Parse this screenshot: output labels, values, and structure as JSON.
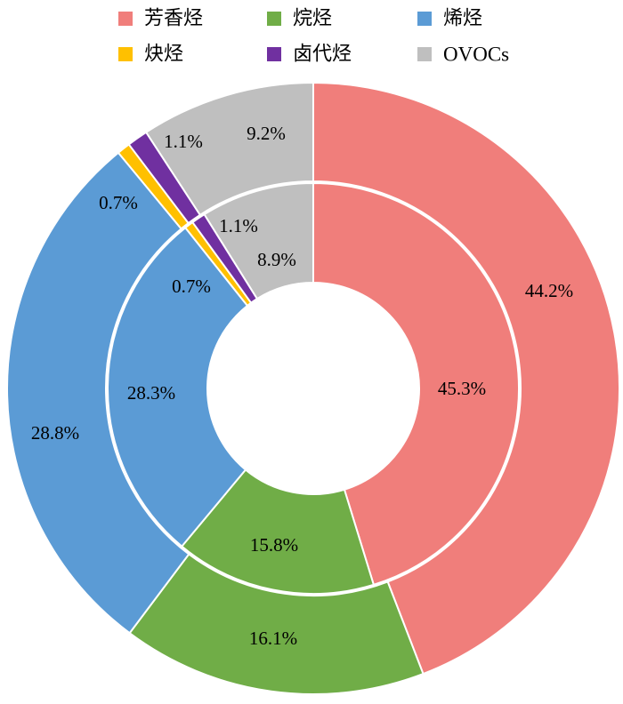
{
  "chart_data": {
    "type": "pie",
    "subtype": "nested-donut",
    "title": "",
    "categories": [
      "芳香烃",
      "烷烃",
      "烯烃",
      "炔烃",
      "卤代烃",
      "OVOCs"
    ],
    "colors": [
      "#f07e7b",
      "#70ad47",
      "#5b9bd5",
      "#ffc000",
      "#7030a0",
      "#bfbfbf"
    ],
    "series": [
      {
        "ring": "outer",
        "values": [
          44.2,
          16.1,
          28.8,
          0.7,
          1.1,
          9.2
        ],
        "labels": [
          "44.2%",
          "16.1%",
          "28.8%",
          "0.7%",
          "1.1%",
          "9.2%"
        ]
      },
      {
        "ring": "inner",
        "values": [
          45.3,
          15.8,
          28.3,
          0.7,
          1.1,
          8.9
        ],
        "labels": [
          "45.3%",
          "15.8%",
          "28.3%",
          "0.7%",
          "1.1%",
          "8.9%"
        ]
      }
    ],
    "legend_position": "top",
    "start_angle": "12 o'clock",
    "direction": "clockwise"
  }
}
